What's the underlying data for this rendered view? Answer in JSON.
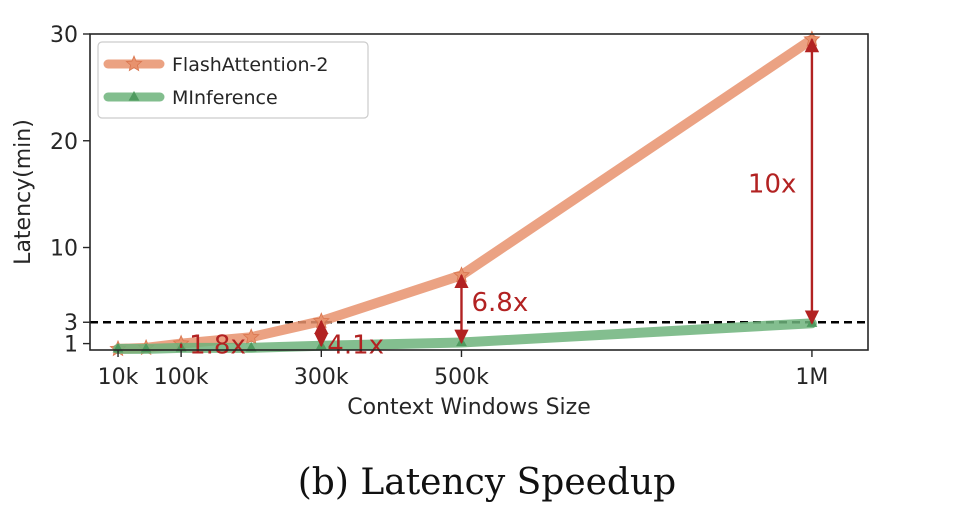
{
  "caption": "(b) Latency Speedup",
  "chart_data": {
    "type": "line",
    "title": "",
    "xlabel": "Context Windows Size",
    "ylabel": "Latency(min)",
    "xlim": [
      -30000,
      1080000
    ],
    "ylim": [
      0.4,
      30
    ],
    "x_ticks": [
      {
        "value": 10000,
        "label": "10k"
      },
      {
        "value": 100000,
        "label": "100k"
      },
      {
        "value": 300000,
        "label": "300k"
      },
      {
        "value": 500000,
        "label": "500k"
      },
      {
        "value": 1000000,
        "label": "1M"
      }
    ],
    "y_ticks": [
      {
        "value": 1,
        "label": "1"
      },
      {
        "value": 3,
        "label": "3"
      },
      {
        "value": 10,
        "label": "10"
      },
      {
        "value": 20,
        "label": "20"
      },
      {
        "value": 30,
        "label": "30"
      }
    ],
    "legend_position": "top-left",
    "series": [
      {
        "name": "FlashAttention-2",
        "color": "#e8926d",
        "marker": "star",
        "x": [
          10000,
          50000,
          100000,
          200000,
          300000,
          500000,
          1000000
        ],
        "y": [
          0.5,
          0.6,
          1.0,
          1.6,
          3.1,
          7.4,
          29.5
        ]
      },
      {
        "name": "MInference",
        "color": "#6db37b",
        "marker": "triangle",
        "x": [
          10000,
          50000,
          100000,
          200000,
          300000,
          500000,
          1000000
        ],
        "y": [
          0.5,
          0.5,
          0.6,
          0.6,
          0.8,
          1.1,
          2.9
        ]
      }
    ],
    "reference_line": {
      "y": 3,
      "style": "dashed",
      "color": "#000000"
    },
    "annotations": [
      {
        "text": "1.8x",
        "x": 100000,
        "y_from": 0.6,
        "y_to": 1.0,
        "label_x": 100000,
        "label_y": 0.9
      },
      {
        "text": "4.1x",
        "x": 300000,
        "y_from": 0.8,
        "y_to": 3.1,
        "label_x": 300000,
        "label_y": 0.9
      },
      {
        "text": "6.8x",
        "x": 500000,
        "y_from": 1.1,
        "y_to": 7.4,
        "label_x": 500000,
        "label_y": 4.9
      },
      {
        "text": "10x",
        "x": 1000000,
        "y_from": 2.9,
        "y_to": 29.5,
        "label_x": 1000000,
        "label_y": 16.0
      }
    ],
    "annotation_color": "#b22222"
  }
}
